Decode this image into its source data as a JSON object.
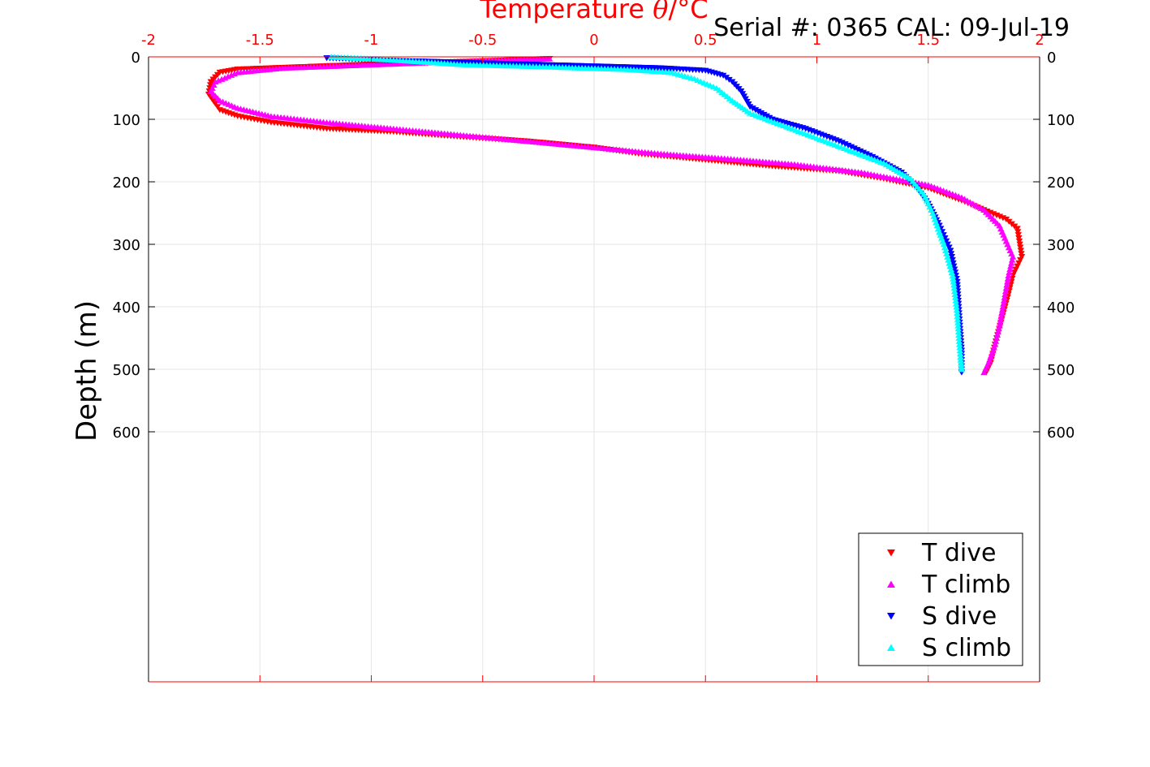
{
  "chart_data": {
    "type": "scatter",
    "title_prefix": "Temperature ",
    "title_symbol": "θ",
    "title_suffix": "/°C",
    "serial_text": "Serial #: 0365  CAL: 09-Jul-19",
    "ylabel": "Depth (m)",
    "xlim": [
      -2,
      2
    ],
    "ylim": [
      0,
      1000
    ],
    "y_reversed": true,
    "x_ticks": [
      "-2",
      "-1.5",
      "-1",
      "-0.5",
      "0",
      "0.5",
      "1",
      "1.5",
      "2"
    ],
    "y_ticks": [
      "0",
      "100",
      "200",
      "300",
      "400",
      "500",
      "600"
    ],
    "grid": true,
    "legend_position": "bottom-right",
    "colors": {
      "axis": "#ff0000",
      "grid": "#e6e6e6"
    },
    "series": [
      {
        "name": "T dive",
        "color": "#ff0000",
        "marker": "triangle-down",
        "x": [
          -0.2,
          -0.6,
          -1.0,
          -1.3,
          -1.6,
          -1.68,
          -1.72,
          -1.73,
          -1.7,
          -1.68,
          -1.6,
          -1.45,
          -1.2,
          -0.9,
          -0.6,
          -0.3,
          0.0,
          0.2,
          0.5,
          0.8,
          1.1,
          1.3,
          1.5,
          1.65,
          1.75,
          1.85,
          1.9,
          1.92,
          1.88,
          1.86,
          1.83,
          1.8,
          1.78,
          1.76
        ],
        "y": [
          3,
          8,
          12,
          16,
          20,
          25,
          40,
          60,
          75,
          85,
          95,
          105,
          115,
          120,
          128,
          135,
          145,
          155,
          165,
          175,
          183,
          195,
          210,
          230,
          245,
          260,
          275,
          320,
          350,
          380,
          420,
          460,
          490,
          505
        ]
      },
      {
        "name": "T climb",
        "color": "#ff00ff",
        "marker": "triangle-up",
        "x": [
          -0.2,
          -0.5,
          -0.8,
          -1.1,
          -1.4,
          -1.6,
          -1.7,
          -1.72,
          -1.68,
          -1.6,
          -1.45,
          -1.2,
          -0.9,
          -0.6,
          -0.3,
          0.0,
          0.3,
          0.6,
          0.9,
          1.2,
          1.5,
          1.65,
          1.75,
          1.82,
          1.88,
          1.86,
          1.84,
          1.82,
          1.8,
          1.77,
          1.75
        ],
        "y": [
          3,
          6,
          10,
          14,
          18,
          25,
          40,
          55,
          70,
          82,
          95,
          105,
          115,
          125,
          135,
          145,
          155,
          163,
          172,
          185,
          205,
          225,
          245,
          270,
          320,
          350,
          390,
          430,
          460,
          490,
          505
        ]
      },
      {
        "name": "S dive",
        "color": "#0000ff",
        "marker": "triangle-down",
        "x": [
          -1.2,
          -1.0,
          -0.5,
          0.0,
          0.3,
          0.5,
          0.58,
          0.62,
          0.66,
          0.7,
          0.8,
          0.95,
          1.1,
          1.25,
          1.38,
          1.45,
          1.5,
          1.55,
          1.6,
          1.63,
          1.64,
          1.65,
          1.65
        ],
        "y": [
          2,
          5,
          10,
          15,
          18,
          22,
          30,
          40,
          55,
          80,
          100,
          115,
          135,
          160,
          185,
          210,
          235,
          270,
          310,
          360,
          420,
          470,
          505
        ]
      },
      {
        "name": "S climb",
        "color": "#00ffff",
        "marker": "triangle-up",
        "x": [
          -1.18,
          -0.9,
          -0.6,
          -0.2,
          0.15,
          0.35,
          0.45,
          0.55,
          0.62,
          0.7,
          0.85,
          1.0,
          1.15,
          1.3,
          1.42,
          1.48,
          1.52,
          1.57,
          1.61,
          1.63,
          1.64,
          1.65
        ],
        "y": [
          0,
          5,
          12,
          16,
          20,
          25,
          35,
          50,
          70,
          90,
          110,
          130,
          150,
          170,
          195,
          220,
          250,
          300,
          350,
          410,
          460,
          500
        ]
      }
    ]
  }
}
